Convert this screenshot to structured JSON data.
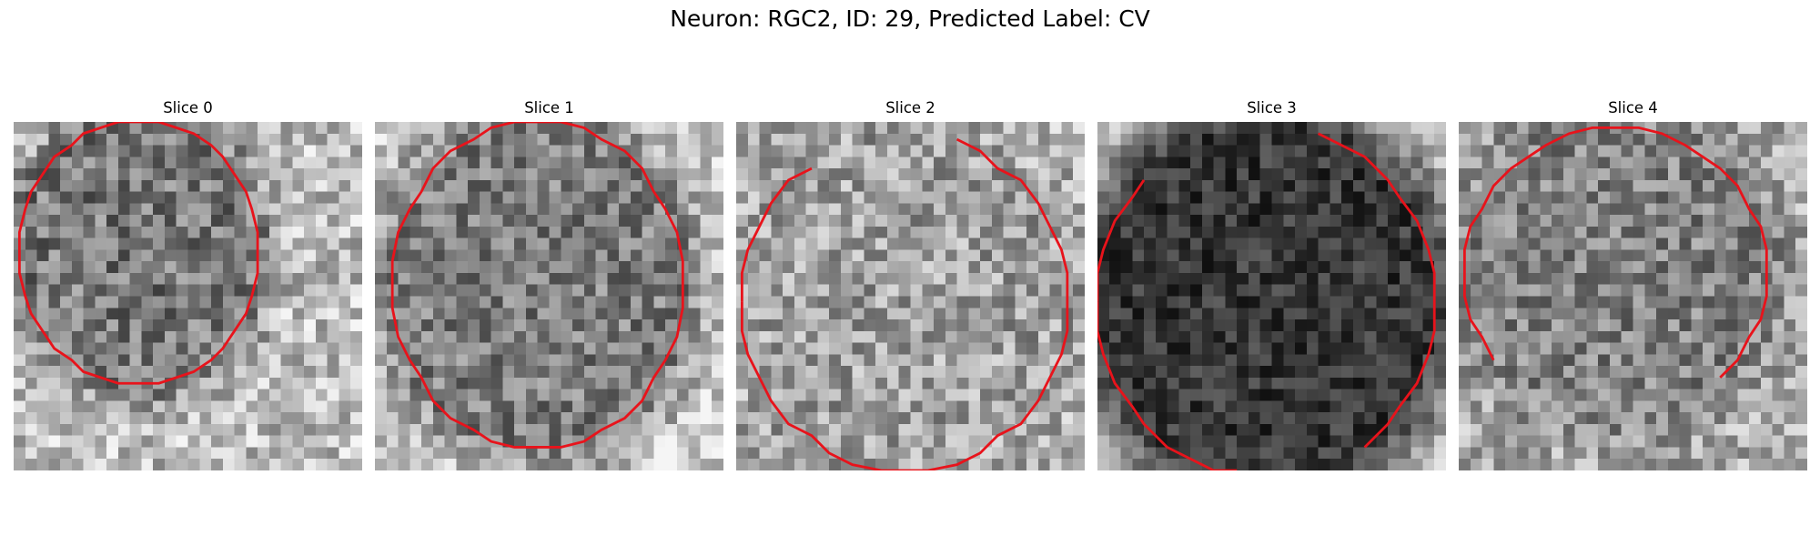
{
  "figure": {
    "title": "Neuron: RGC2, ID: 29, Predicted Label: CV"
  },
  "colors": {
    "contour": "#e8131b",
    "background": "#ffffff"
  },
  "slices": [
    {
      "label": "Slice 0",
      "seed": 11,
      "base": 120,
      "outside": 190,
      "contrast": 60
    },
    {
      "label": "Slice 1",
      "seed": 23,
      "base": 125,
      "outside": 205,
      "contrast": 55
    },
    {
      "label": "Slice 2",
      "seed": 37,
      "base": 160,
      "outside": 175,
      "contrast": 60
    },
    {
      "label": "Slice 3",
      "seed": 51,
      "base": 55,
      "outside": 190,
      "contrast": 40
    },
    {
      "label": "Slice 4",
      "seed": 67,
      "base": 130,
      "outside": 170,
      "contrast": 55
    }
  ]
}
